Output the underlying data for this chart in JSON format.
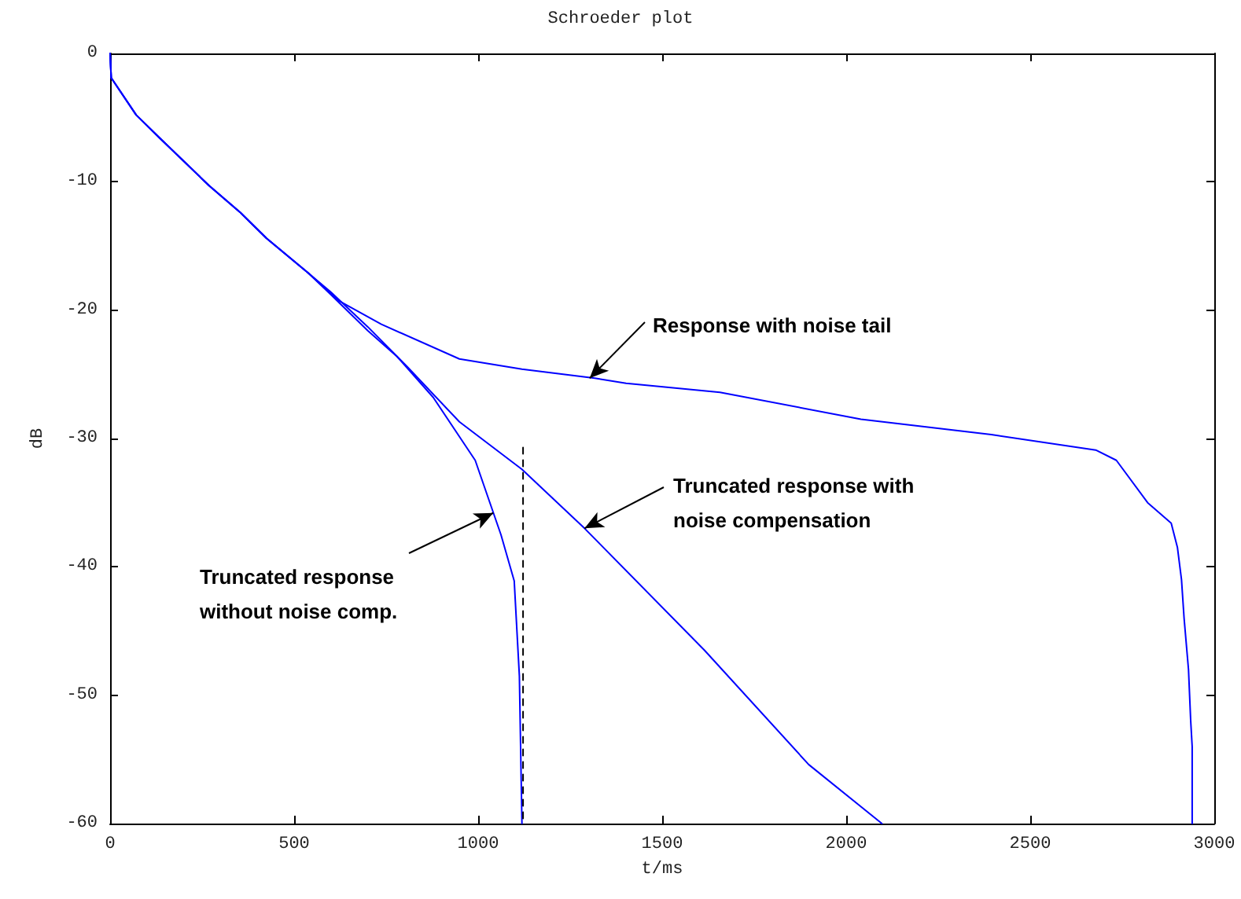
{
  "chart_data": {
    "type": "line",
    "title": "Schroeder plot",
    "xlabel": "t/ms",
    "ylabel": "dB",
    "xlim": [
      0,
      3000
    ],
    "xticks": [
      0,
      500,
      1000,
      1500,
      2000,
      2500,
      3000
    ],
    "ylim": [
      -60,
      0
    ],
    "yticks": [
      -60,
      -50,
      -40,
      -30,
      -20,
      -10,
      0
    ],
    "grid": false,
    "marker": "none",
    "series": [
      {
        "color": "#0000ff",
        "x": [
          0,
          3,
          71,
          135,
          269,
          354,
          425,
          538,
          623,
          737,
          949,
          1119,
          1317,
          1402,
          1657,
          2040,
          2394,
          2678,
          2734,
          2819,
          2883,
          2900,
          2911,
          2918,
          2930,
          2936,
          2940,
          2940
        ],
        "values": [
          0,
          -1.9,
          -4.8,
          -6.6,
          -10.3,
          -12.4,
          -14.4,
          -17.1,
          -19.3,
          -21.1,
          -23.8,
          -24.6,
          -25.3,
          -25.7,
          -26.4,
          -28.5,
          -29.7,
          -30.9,
          -31.7,
          -35,
          -36.6,
          -38.5,
          -41,
          -44,
          -48,
          -52,
          -54,
          -60
        ]
      },
      {
        "color": "#0000ff",
        "x": [
          0,
          3,
          71,
          135,
          269,
          354,
          425,
          538,
          600,
          700,
          807,
          949,
          1119,
          1289,
          1615,
          1898,
          2097
        ],
        "values": [
          0,
          -1.9,
          -4.8,
          -6.6,
          -10.3,
          -12.4,
          -14.4,
          -17.1,
          -18.6,
          -21.3,
          -24.4,
          -28.7,
          -32.4,
          -37,
          -46.5,
          -55.4,
          -60
        ]
      },
      {
        "color": "#0000ff",
        "x": [
          0,
          3,
          71,
          135,
          269,
          354,
          425,
          538,
          600,
          700,
          779,
          878,
          992,
          1062,
          1098,
          1112,
          1119
        ],
        "values": [
          0,
          -1.9,
          -4.8,
          -6.6,
          -10.3,
          -12.4,
          -14.4,
          -17.1,
          -18.8,
          -21.6,
          -23.6,
          -26.8,
          -31.7,
          -37.5,
          -41.1,
          -48.5,
          -60
        ]
      },
      {
        "color": "#000000",
        "line_style": "dashed",
        "x": [
          1122,
          1122
        ],
        "values": [
          -30.7,
          -60
        ]
      }
    ],
    "annotations": [
      {
        "text": "Response with noise tail",
        "x": 1303,
        "y": -25.3
      },
      {
        "text": "Truncated response with\nnoise compensation",
        "x": 1289,
        "y": -37
      },
      {
        "text": "Truncated response\nwithout noise comp.",
        "x": 1041,
        "y": -35.8
      }
    ]
  }
}
